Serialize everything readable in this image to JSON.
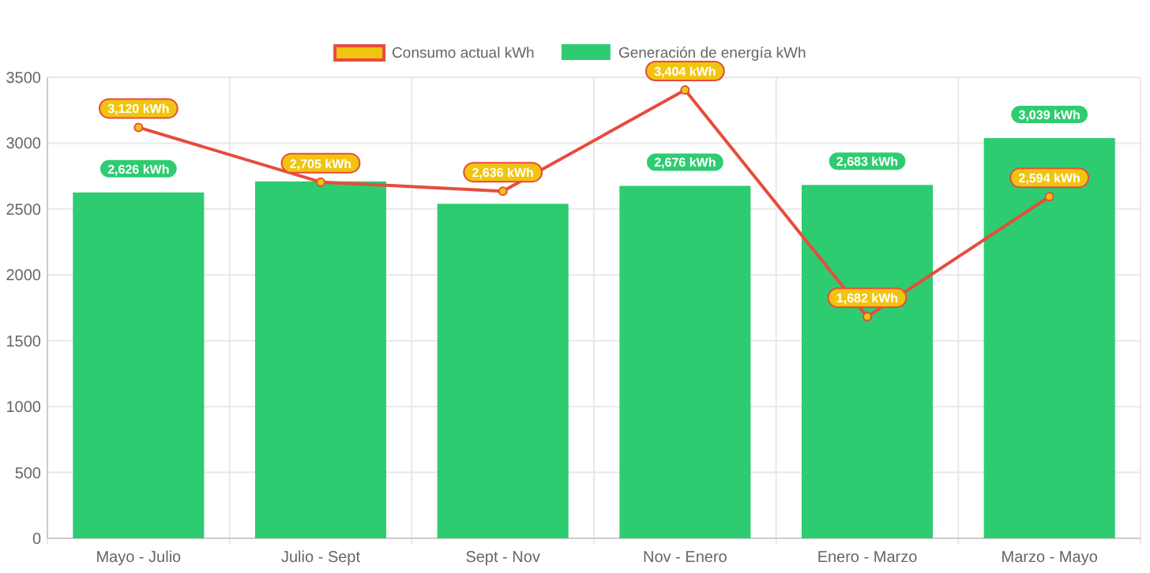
{
  "chart_data": {
    "type": "bar",
    "categories": [
      "Mayo - Julio",
      "Julio - Sept",
      "Sept - Nov",
      "Nov - Enero",
      "Enero - Marzo",
      "Marzo - Mayo"
    ],
    "series": [
      {
        "name": "Consumo actual kWh",
        "type": "line",
        "color": "#e74c3c",
        "values": [
          3120,
          2705,
          2636,
          3404,
          1682,
          2594
        ],
        "value_labels": [
          "3,120 kWh",
          "2,705 kWh",
          "2,636 kWh",
          "3,404 kWh",
          "1,682 kWh",
          "2,594 kWh"
        ]
      },
      {
        "name": "Generación de energía kWh",
        "color": "#2ecc71",
        "values": [
          2626,
          2710,
          2540,
          2676,
          2683,
          3039
        ],
        "value_labels": [
          "2,626 kWh",
          null,
          null,
          "2,676 kWh",
          "2,683 kWh",
          "3,039 kWh"
        ]
      }
    ],
    "ylim": [
      0,
      3500
    ],
    "yticks": [
      0,
      500,
      1000,
      1500,
      2000,
      2500,
      3000,
      3500
    ],
    "grid": true,
    "legend": "top",
    "marker": "circle"
  }
}
